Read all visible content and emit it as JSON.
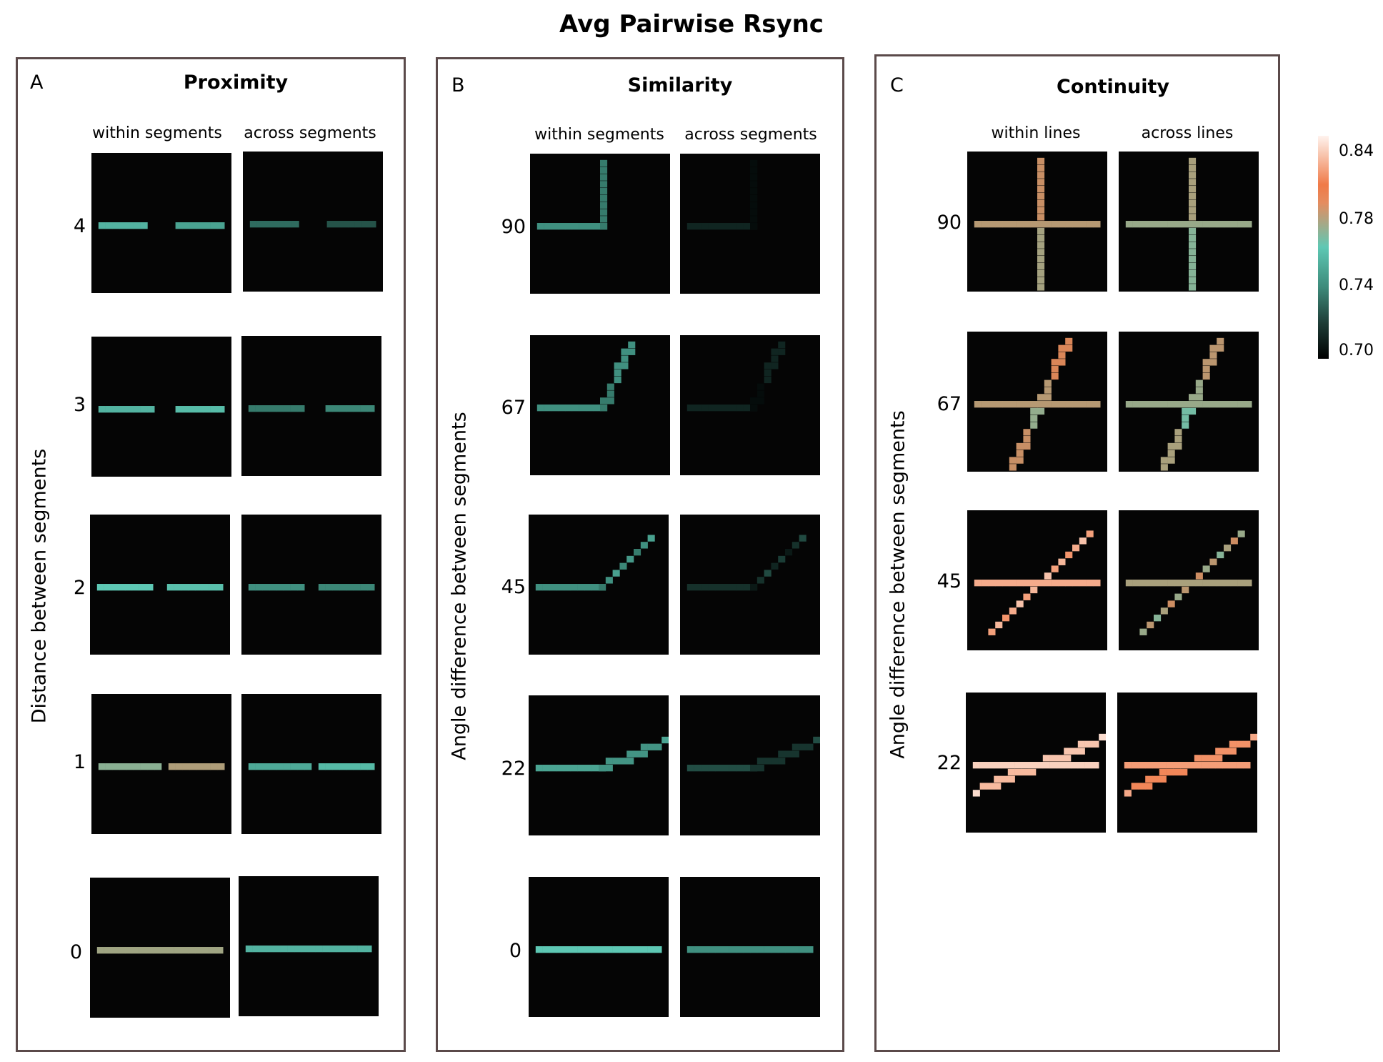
{
  "chart_data": {
    "type": "heatmap",
    "title": "Avg Pairwise Rsync",
    "colorbar": {
      "ticks": [
        "0.84",
        "0.78",
        "0.74",
        "0.70"
      ],
      "range": [
        0.7,
        0.85
      ],
      "stops": [
        "#000000",
        "#5ec8b4",
        "#f07a48",
        "#fff3ee"
      ]
    },
    "panels": [
      {
        "label": "A",
        "title": "Proximity",
        "ylabel": "Distance between segments",
        "columns": [
          "within segments",
          "across segments"
        ],
        "rows": [
          {
            "label": "4",
            "shape": "gap",
            "param": 4,
            "within": 0.765,
            "across": 0.735
          },
          {
            "label": "3",
            "shape": "gap",
            "param": 3,
            "within": 0.765,
            "across": 0.74
          },
          {
            "label": "2",
            "shape": "gap",
            "param": 2,
            "within": 0.775,
            "across": 0.748
          },
          {
            "label": "1",
            "shape": "gap",
            "param": 1,
            "within": 0.785,
            "across": 0.76
          },
          {
            "label": "0",
            "shape": "gap",
            "param": 0,
            "within": 0.79,
            "across": 0.765
          }
        ]
      },
      {
        "label": "B",
        "title": "Similarity",
        "ylabel": "Angle difference between segments",
        "columns": [
          "within segments",
          "across segments"
        ],
        "rows": [
          {
            "label": "90",
            "shape": "bend",
            "param": 90,
            "within": 0.748,
            "across": 0.712
          },
          {
            "label": "67",
            "shape": "bend",
            "param": 67,
            "within": 0.748,
            "across": 0.712
          },
          {
            "label": "45",
            "shape": "bend",
            "param": 45,
            "within": 0.748,
            "across": 0.716
          },
          {
            "label": "22",
            "shape": "bend",
            "param": 22,
            "within": 0.758,
            "across": 0.725
          },
          {
            "label": "0",
            "shape": "bend",
            "param": 0,
            "within": 0.775,
            "across": 0.748
          }
        ]
      },
      {
        "label": "C",
        "title": "Continuity",
        "ylabel": "Angle difference between segments",
        "columns": [
          "within lines",
          "across lines"
        ],
        "rows": [
          {
            "label": "90",
            "shape": "cross",
            "param": 90,
            "within": 0.795,
            "across": 0.788
          },
          {
            "label": "67",
            "shape": "cross",
            "param": 67,
            "within": 0.795,
            "across": 0.788
          },
          {
            "label": "45",
            "shape": "cross",
            "param": 45,
            "within": 0.825,
            "across": 0.792
          },
          {
            "label": "22",
            "shape": "cross",
            "param": 22,
            "within": 0.838,
            "across": 0.82
          }
        ]
      }
    ]
  }
}
